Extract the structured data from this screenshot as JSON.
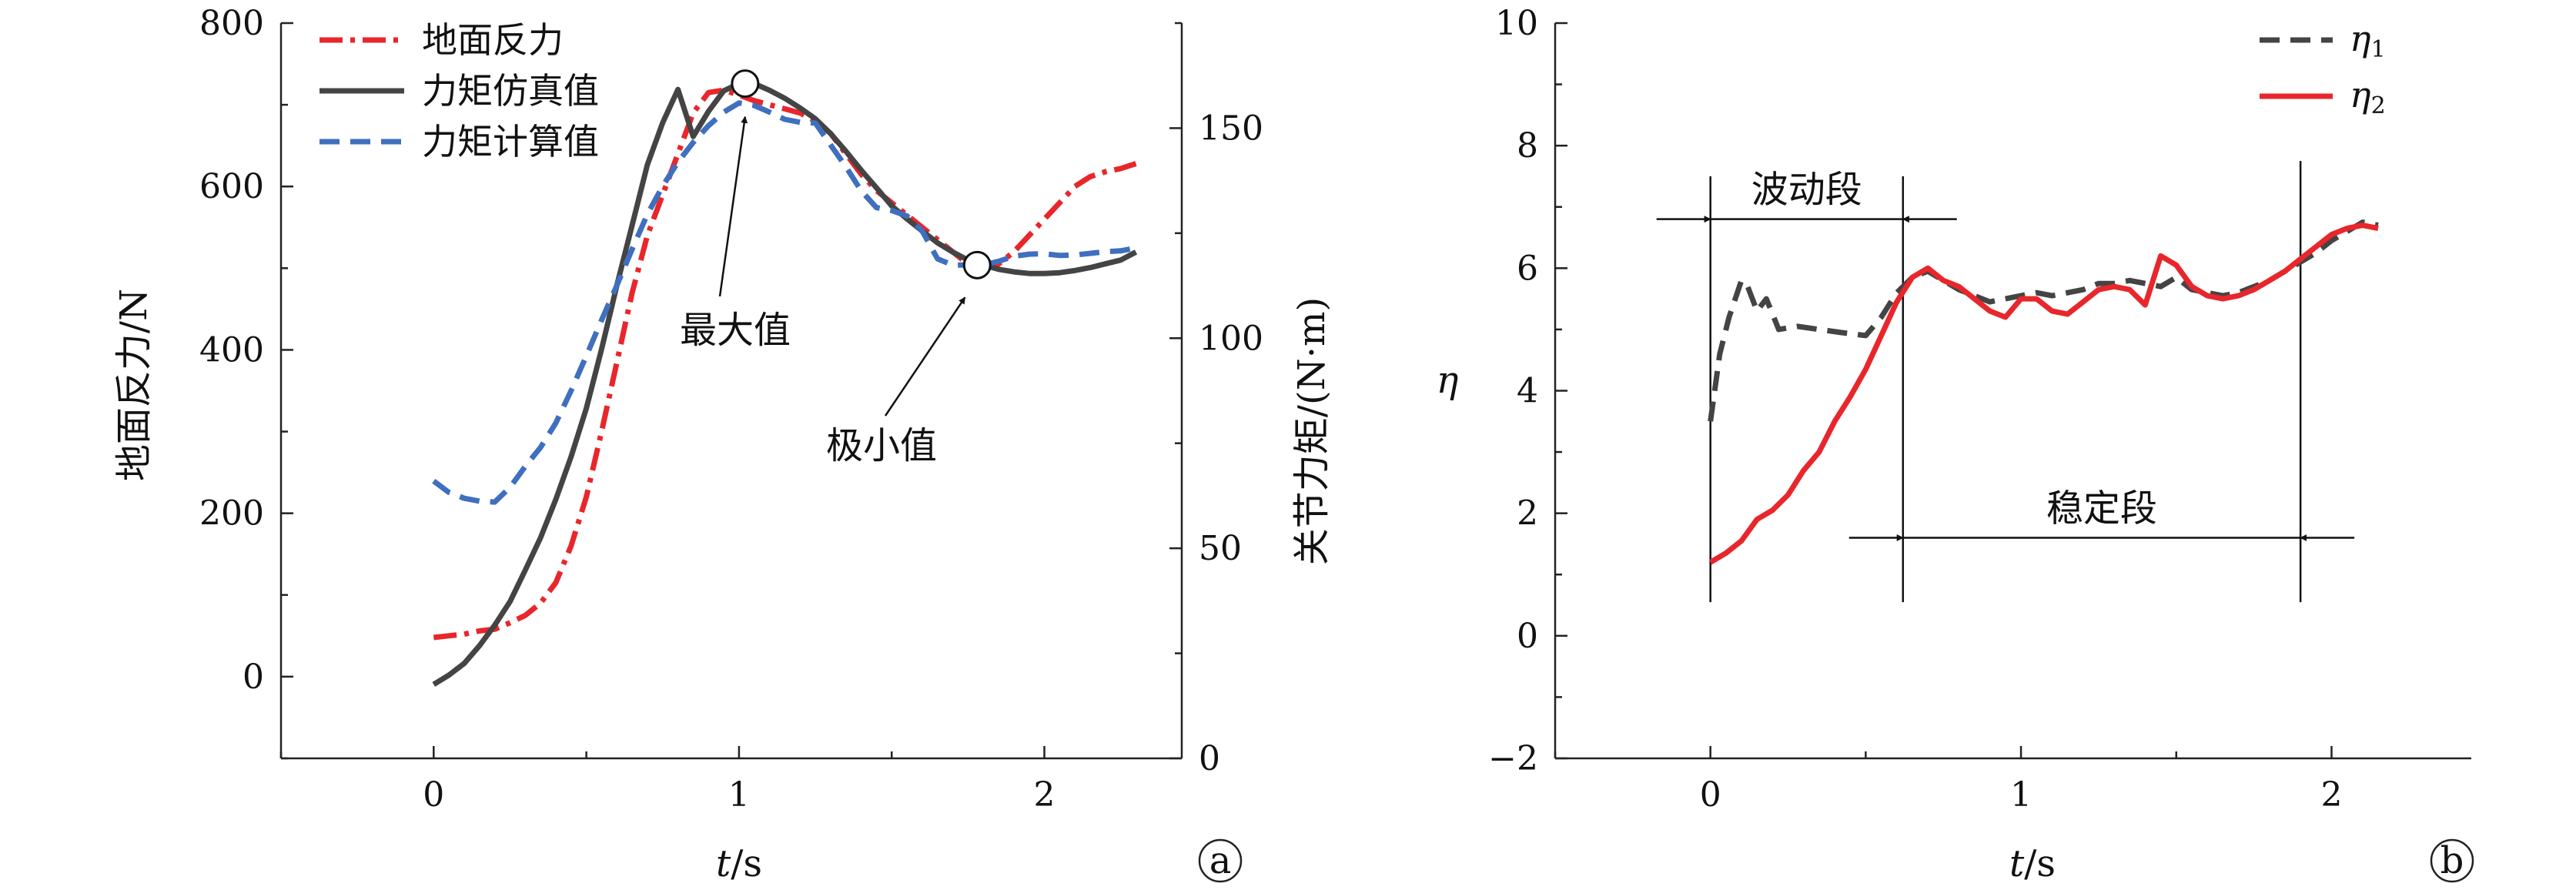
{
  "chart_data": [
    {
      "type": "line",
      "panel_label": "a",
      "xlabel_italic": "t",
      "xlabel_unit": "/s",
      "ylabel": "地面反力/N",
      "y2label": "关节力矩/(N·m)",
      "xlim": [
        -0.5,
        2.45
      ],
      "ylim": [
        -100,
        800
      ],
      "y2lim": [
        0,
        175
      ],
      "xticks": [
        0,
        1,
        2
      ],
      "yticks": [
        0,
        200,
        400,
        600,
        800
      ],
      "y2ticks": [
        0,
        50,
        100,
        150
      ],
      "legend_position": "top-left",
      "series": [
        {
          "name": "地面反力",
          "style": "dash-dot",
          "color": "#e8262b",
          "axis": "left",
          "x": [
            0,
            0.05,
            0.1,
            0.15,
            0.2,
            0.25,
            0.3,
            0.35,
            0.4,
            0.45,
            0.5,
            0.55,
            0.6,
            0.65,
            0.7,
            0.75,
            0.8,
            0.85,
            0.9,
            0.95,
            1.0,
            1.05,
            1.1,
            1.15,
            1.2,
            1.25,
            1.3,
            1.35,
            1.4,
            1.45,
            1.5,
            1.55,
            1.6,
            1.65,
            1.7,
            1.75,
            1.8,
            1.85,
            1.9,
            1.95,
            2.0,
            2.05,
            2.1,
            2.15,
            2.2,
            2.25,
            2.3
          ],
          "y": [
            48,
            50,
            52,
            56,
            58,
            66,
            75,
            90,
            115,
            160,
            220,
            300,
            385,
            470,
            540,
            590,
            640,
            690,
            715,
            718,
            712,
            705,
            700,
            695,
            690,
            680,
            665,
            640,
            615,
            595,
            580,
            565,
            550,
            535,
            520,
            505,
            498,
            505,
            520,
            540,
            560,
            580,
            600,
            612,
            618,
            622,
            628
          ]
        },
        {
          "name": "力矩仿真值",
          "style": "solid",
          "color": "#444444",
          "axis": "right",
          "x": [
            0,
            0.05,
            0.1,
            0.15,
            0.2,
            0.25,
            0.3,
            0.35,
            0.4,
            0.45,
            0.5,
            0.55,
            0.6,
            0.65,
            0.7,
            0.75,
            0.8,
            0.85,
            0.9,
            0.95,
            1.0,
            1.05,
            1.1,
            1.15,
            1.2,
            1.25,
            1.3,
            1.35,
            1.4,
            1.45,
            1.5,
            1.55,
            1.6,
            1.65,
            1.7,
            1.75,
            1.8,
            1.85,
            1.9,
            1.95,
            2.0,
            2.05,
            2.1,
            2.15,
            2.2,
            2.25,
            2.3
          ],
          "y": [
            17.6,
            19.8,
            22.6,
            26.8,
            31.7,
            37.3,
            44.8,
            52.5,
            61.6,
            71.8,
            83.3,
            97.4,
            112.6,
            126.9,
            141.3,
            151.3,
            159.2,
            148.0,
            154.0,
            158.9,
            160.6,
            160.6,
            159.0,
            157.1,
            154.8,
            152.2,
            148.7,
            144.5,
            140.0,
            135.8,
            131.5,
            128.4,
            125.5,
            122.7,
            120.5,
            118.6,
            117.4,
            116.4,
            115.8,
            115.4,
            115.4,
            115.6,
            116.1,
            116.8,
            117.7,
            118.6,
            120.5
          ]
        },
        {
          "name": "力矩计算值",
          "style": "dashed",
          "color": "#3f6fbf",
          "axis": "right",
          "x": [
            0,
            0.05,
            0.1,
            0.15,
            0.2,
            0.25,
            0.3,
            0.35,
            0.4,
            0.45,
            0.5,
            0.55,
            0.6,
            0.65,
            0.7,
            0.75,
            0.8,
            0.85,
            0.9,
            0.95,
            1.0,
            1.05,
            1.1,
            1.15,
            1.2,
            1.25,
            1.3,
            1.35,
            1.4,
            1.45,
            1.5,
            1.55,
            1.6,
            1.65,
            1.7,
            1.75,
            1.8,
            1.85,
            1.9,
            1.95,
            2.0,
            2.05,
            2.1,
            2.15,
            2.2,
            2.25,
            2.3
          ],
          "y": [
            66.0,
            63.3,
            61.9,
            61.2,
            61.0,
            64.5,
            69.5,
            74.0,
            79.8,
            87.5,
            95.8,
            104.3,
            112.6,
            121.2,
            129.5,
            136.2,
            141.9,
            146.6,
            150.6,
            153.8,
            156.0,
            155.4,
            153.8,
            152.1,
            151.4,
            151.2,
            146.0,
            140.8,
            135.1,
            131.1,
            130.4,
            129.1,
            125.5,
            118.9,
            117.4,
            117.4,
            117.4,
            118.3,
            119.5,
            120.0,
            120.1,
            119.7,
            119.8,
            120.2,
            120.6,
            120.8,
            121.5
          ]
        }
      ],
      "markers": [
        {
          "x": 1.02,
          "y2": 160.6
        },
        {
          "x": 1.78,
          "y2": 117.4
        }
      ],
      "annotations": [
        {
          "text": "最大值",
          "arrow_to_x": 1.02,
          "arrow_to_y2": 156
        },
        {
          "text": "极小值",
          "arrow_to_x": 1.74,
          "arrow_to_y2": 113
        }
      ]
    },
    {
      "type": "line",
      "panel_label": "b",
      "xlabel_italic": "t",
      "xlabel_unit": "/s",
      "ylabel_italic": "η",
      "xlim": [
        -0.5,
        2.45
      ],
      "ylim": [
        -2,
        10
      ],
      "xticks": [
        0,
        1,
        2
      ],
      "yticks": [
        -2,
        0,
        2,
        4,
        6,
        8,
        10
      ],
      "yticklabels": [
        "−2",
        "0",
        "2",
        "4",
        "6",
        "8",
        "10"
      ],
      "legend_position": "top-right",
      "series": [
        {
          "name": "η",
          "name_sub": "1",
          "style": "dashed",
          "color": "#444444",
          "x": [
            0,
            0.03,
            0.06,
            0.1,
            0.12,
            0.15,
            0.18,
            0.22,
            0.28,
            0.35,
            0.42,
            0.5,
            0.55,
            0.6,
            0.65,
            0.7,
            0.75,
            0.8,
            0.85,
            0.9,
            0.95,
            1.0,
            1.05,
            1.1,
            1.15,
            1.2,
            1.25,
            1.3,
            1.35,
            1.4,
            1.45,
            1.5,
            1.55,
            1.6,
            1.65,
            1.7,
            1.75,
            1.8,
            1.85,
            1.9,
            1.95,
            2.0,
            2.05,
            2.1,
            2.15
          ],
          "y": [
            3.5,
            4.6,
            5.2,
            5.8,
            5.7,
            5.3,
            5.5,
            5.0,
            5.05,
            5.0,
            4.95,
            4.9,
            5.2,
            5.6,
            5.85,
            5.95,
            5.8,
            5.65,
            5.55,
            5.45,
            5.5,
            5.55,
            5.6,
            5.55,
            5.6,
            5.65,
            5.75,
            5.75,
            5.8,
            5.75,
            5.7,
            5.85,
            5.65,
            5.6,
            5.55,
            5.6,
            5.7,
            5.8,
            5.95,
            6.1,
            6.25,
            6.45,
            6.6,
            6.75,
            6.7
          ]
        },
        {
          "name": "η",
          "name_sub": "2",
          "style": "solid",
          "color": "#e8262b",
          "x": [
            0,
            0.05,
            0.1,
            0.15,
            0.2,
            0.25,
            0.3,
            0.35,
            0.4,
            0.45,
            0.5,
            0.55,
            0.6,
            0.65,
            0.7,
            0.75,
            0.8,
            0.85,
            0.9,
            0.95,
            1.0,
            1.05,
            1.1,
            1.15,
            1.2,
            1.25,
            1.3,
            1.35,
            1.4,
            1.45,
            1.5,
            1.55,
            1.6,
            1.65,
            1.7,
            1.75,
            1.8,
            1.85,
            1.9,
            1.95,
            2.0,
            2.05,
            2.1,
            2.15
          ],
          "y": [
            1.2,
            1.35,
            1.55,
            1.9,
            2.05,
            2.3,
            2.7,
            3.0,
            3.5,
            3.9,
            4.35,
            4.9,
            5.45,
            5.85,
            6.0,
            5.8,
            5.7,
            5.5,
            5.3,
            5.2,
            5.5,
            5.5,
            5.3,
            5.25,
            5.45,
            5.65,
            5.7,
            5.65,
            5.4,
            6.2,
            6.05,
            5.7,
            5.55,
            5.5,
            5.55,
            5.65,
            5.8,
            5.95,
            6.15,
            6.35,
            6.55,
            6.65,
            6.7,
            6.65
          ]
        }
      ],
      "vlines_x": [
        0,
        0.62,
        1.9
      ],
      "spans": [
        {
          "text": "波动段",
          "from_x": 0,
          "to_x": 0.62,
          "y": 6.8
        },
        {
          "text": "稳定段",
          "from_x": 0.62,
          "to_x": 1.9,
          "y": 1.6
        }
      ]
    }
  ]
}
